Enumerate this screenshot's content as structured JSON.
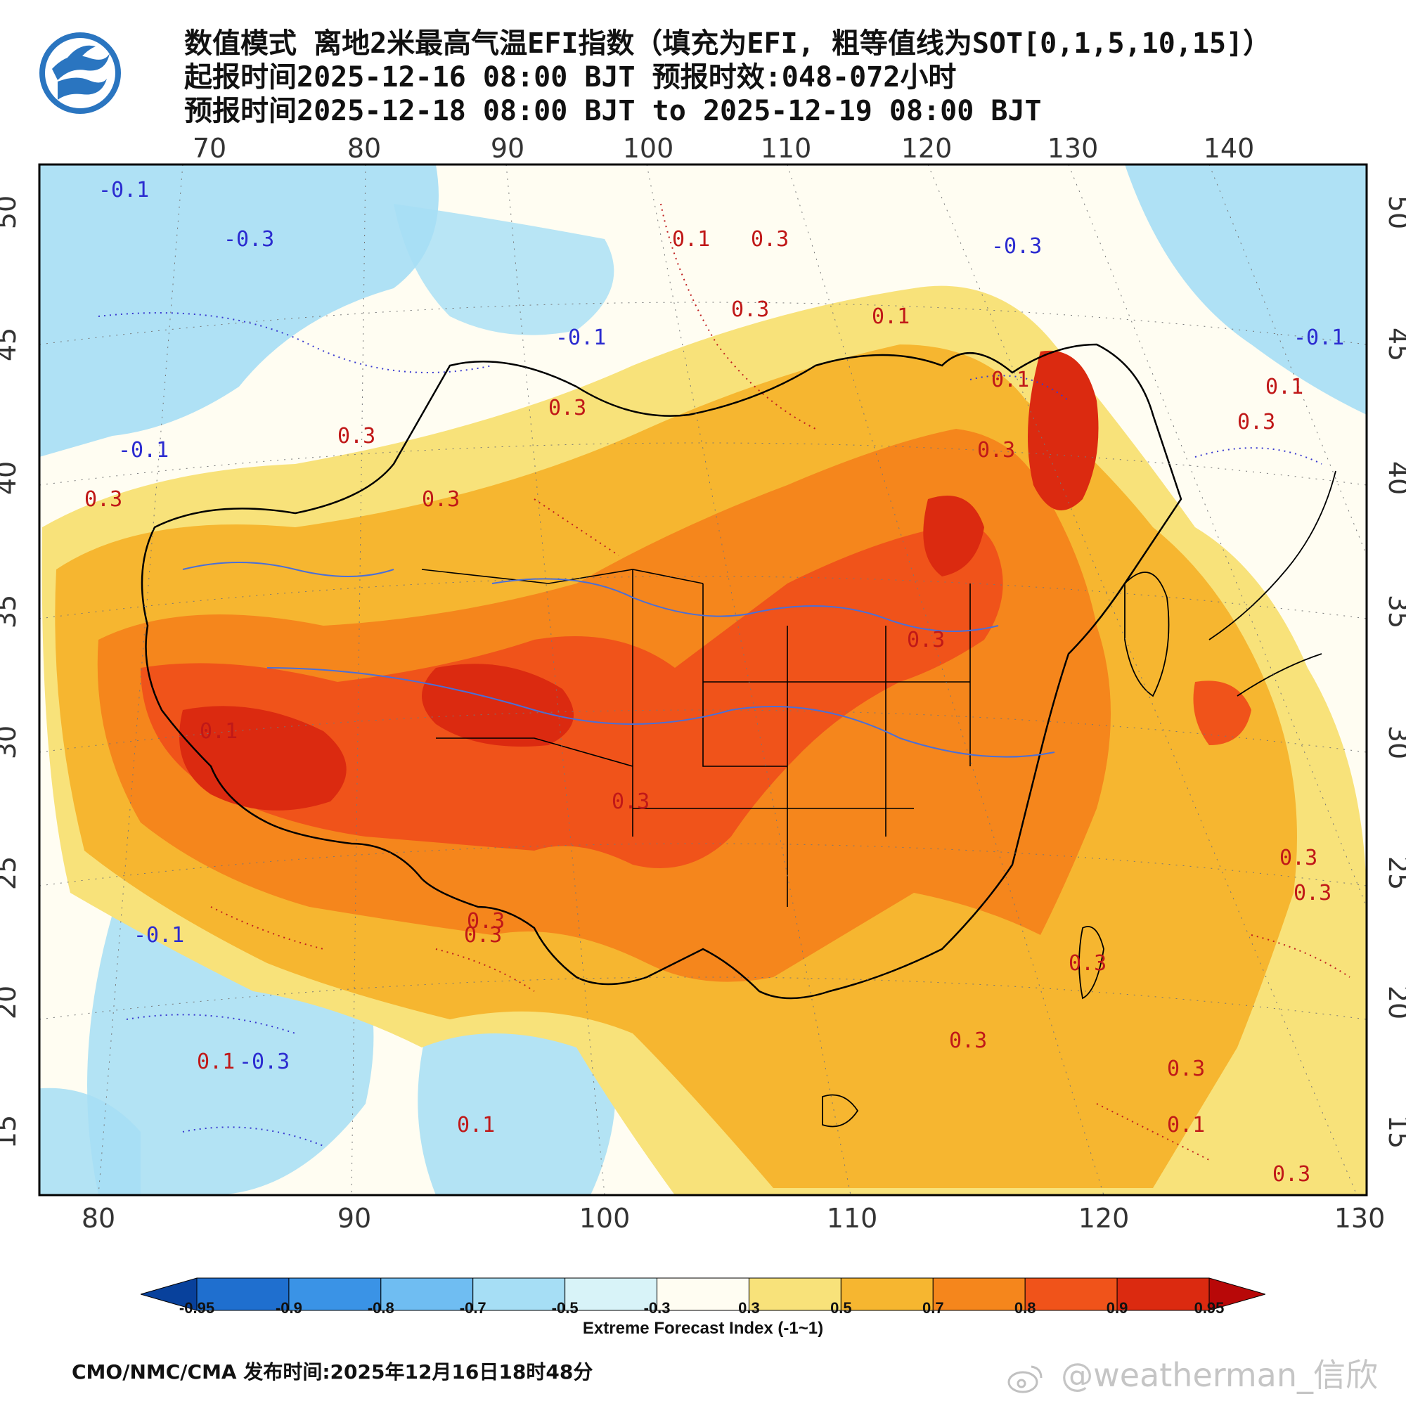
{
  "header": {
    "line1": "数值模式 离地2米最高气温EFI指数（填充为EFI, 粗等值线为SOT[0,1,5,10,15]）",
    "line2": "起报时间2025-12-16 08:00 BJT 预报时效:048-072小时",
    "line3": "预报时间2025-12-18 08:00 BJT to 2025-12-19 08:00 BJT"
  },
  "map": {
    "top_ticks": [
      "70",
      "80",
      "90",
      "100",
      "110",
      "120",
      "130",
      "140"
    ],
    "bottom_ticks": [
      "80",
      "90",
      "100",
      "110",
      "120",
      "130"
    ],
    "left_ticks": [
      "50",
      "45",
      "40",
      "35",
      "30",
      "25",
      "20",
      "15"
    ],
    "right_ticks": [
      "50",
      "45",
      "40",
      "35",
      "30",
      "25",
      "20",
      "15"
    ],
    "contour_labels": [
      "-0.1",
      "-0.3",
      "-0.1",
      "-0.1",
      "0.1",
      "0.3",
      "0.3",
      "0.1",
      "0.3",
      "0.1",
      "0.3",
      "0.3",
      "0.3",
      "-0.3",
      "-0.1",
      "0.1",
      "0.3",
      "0.3",
      "0.1",
      "0.3",
      "0.3",
      "-0.1",
      "0.3",
      "0.1",
      "-0.3",
      "0.3",
      "0.3",
      "0.1",
      "0.3",
      "0.3",
      "0.1",
      "0.3",
      "0.3",
      "0.3"
    ]
  },
  "colorbar": {
    "colors": [
      "#08419c",
      "#1f6fcf",
      "#3a93e6",
      "#6fbdf2",
      "#a6def5",
      "#d8f3f8",
      "#fffdf2",
      "#f8e27a",
      "#f6b630",
      "#f5861c",
      "#f0531a",
      "#db2a10",
      "#b80808"
    ],
    "labels": [
      "-0.95",
      "-0.9",
      "-0.8",
      "-0.7",
      "-0.5",
      "-0.3",
      "0.3",
      "0.5",
      "0.7",
      "0.8",
      "0.9",
      "0.95"
    ],
    "title": "Extreme Forecast Index (-1~1)"
  },
  "footer": {
    "text": "CMO/NMC/CMA 发布时间:2025年12月16日18时48分"
  },
  "watermark": {
    "text": "@weatherman_信欣"
  }
}
